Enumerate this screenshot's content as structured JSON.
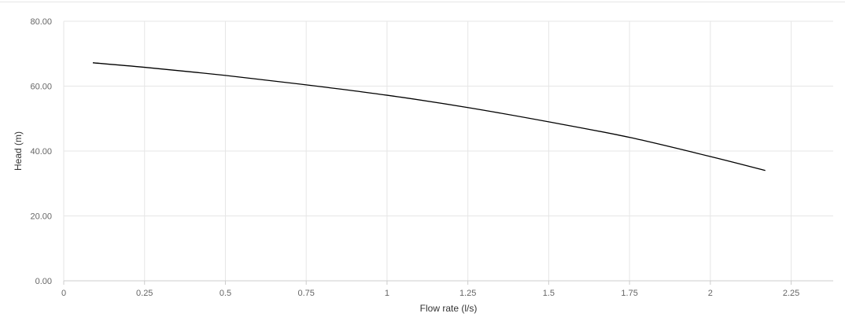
{
  "chart_data": {
    "type": "line",
    "xlabel": "Flow rate (l/s)",
    "ylabel": "Head (m)",
    "xlim": [
      0,
      2.38
    ],
    "ylim": [
      0,
      80
    ],
    "x_ticks": [
      "0",
      "0.25",
      "0.5",
      "0.75",
      "1",
      "1.25",
      "1.5",
      "1.75",
      "2",
      "2.25"
    ],
    "y_ticks": [
      "0.00",
      "20.00",
      "40.00",
      "60.00",
      "80.00"
    ],
    "grid": true,
    "series": [
      {
        "color": "#000000",
        "x": [
          0.09,
          0.25,
          0.5,
          0.75,
          1.0,
          1.25,
          1.5,
          1.75,
          2.0,
          2.17
        ],
        "y": [
          67.2,
          65.8,
          63.3,
          60.4,
          57.2,
          53.4,
          49.0,
          44.2,
          38.3,
          34.0
        ]
      }
    ]
  },
  "colors": {
    "grid": "#e6e6e6",
    "axis": "#cccccc",
    "line": "#000000"
  }
}
